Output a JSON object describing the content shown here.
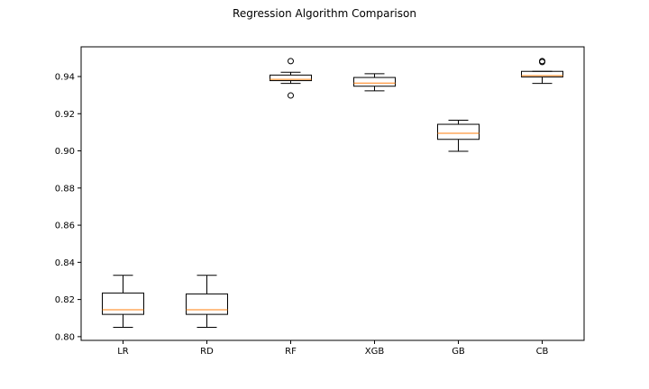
{
  "chart_data": {
    "type": "box",
    "title": "Regression Algorithm Comparison",
    "xlabel": "",
    "ylabel": "",
    "ylim": [
      0.798,
      0.956
    ],
    "yticks": [
      0.8,
      0.82,
      0.84,
      0.86,
      0.88,
      0.9,
      0.92,
      0.94
    ],
    "ytick_labels": [
      "0.80",
      "0.82",
      "0.84",
      "0.86",
      "0.88",
      "0.90",
      "0.92",
      "0.94"
    ],
    "categories": [
      "LR",
      "RD",
      "RF",
      "XGB",
      "GB",
      "CB"
    ],
    "boxes": [
      {
        "label": "LR",
        "whisker_low": 0.805,
        "q1": 0.812,
        "median": 0.8145,
        "q3": 0.8235,
        "whisker_high": 0.833,
        "outliers": []
      },
      {
        "label": "RD",
        "whisker_low": 0.805,
        "q1": 0.812,
        "median": 0.8145,
        "q3": 0.823,
        "whisker_high": 0.833,
        "outliers": []
      },
      {
        "label": "RF",
        "whisker_low": 0.9363,
        "q1": 0.9378,
        "median": 0.9385,
        "q3": 0.9408,
        "whisker_high": 0.9423,
        "outliers": [
          0.9483,
          0.9298
        ]
      },
      {
        "label": "XGB",
        "whisker_low": 0.9323,
        "q1": 0.9348,
        "median": 0.9365,
        "q3": 0.9395,
        "whisker_high": 0.9415,
        "outliers": []
      },
      {
        "label": "GB",
        "whisker_low": 0.8998,
        "q1": 0.9062,
        "median": 0.9095,
        "q3": 0.9143,
        "whisker_high": 0.9165,
        "outliers": []
      },
      {
        "label": "CB",
        "whisker_low": 0.9363,
        "q1": 0.9398,
        "median": 0.9405,
        "q3": 0.9428,
        "whisker_high": 0.9428,
        "outliers": [
          0.9478,
          0.9483
        ]
      }
    ],
    "grid": false,
    "colors": {
      "box": "#000000",
      "median": "#ff7f0e",
      "background": "#ffffff"
    }
  }
}
